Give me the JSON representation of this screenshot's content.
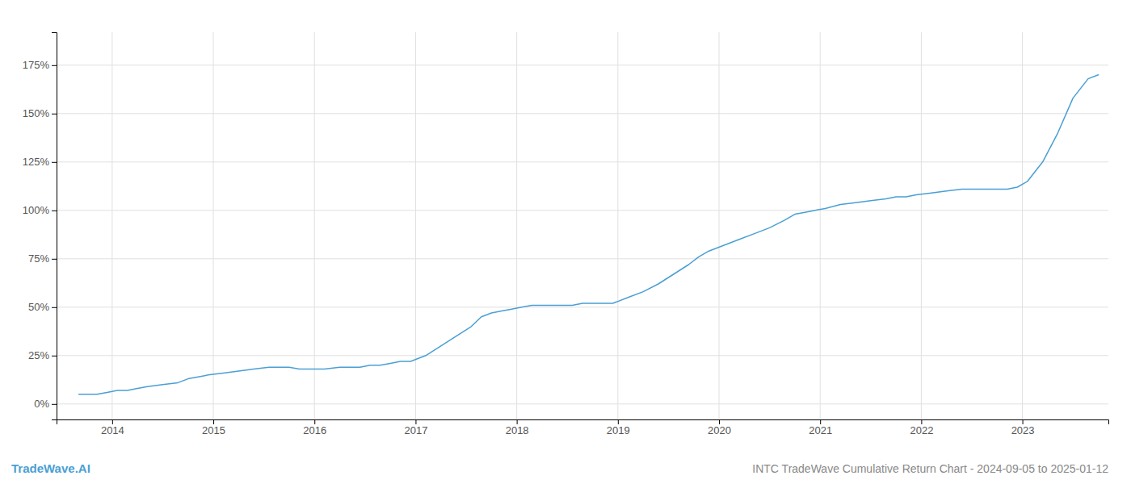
{
  "chart_data": {
    "type": "line",
    "title": "INTC TradeWave Cumulative Return Chart - 2024-09-05 to 2025-01-12",
    "annotations": [
      "TradeWave.AI"
    ],
    "color": "#4a9fd4",
    "grid": true,
    "x": [
      2013.67,
      2013.75,
      2013.85,
      2013.95,
      2014.05,
      2014.15,
      2014.25,
      2014.35,
      2014.5,
      2014.65,
      2014.75,
      2014.85,
      2014.95,
      2015.1,
      2015.25,
      2015.4,
      2015.55,
      2015.65,
      2015.75,
      2015.85,
      2015.95,
      2016.1,
      2016.25,
      2016.35,
      2016.45,
      2016.55,
      2016.65,
      2016.75,
      2016.85,
      2016.95,
      2017.1,
      2017.25,
      2017.4,
      2017.55,
      2017.65,
      2017.75,
      2017.85,
      2017.95,
      2018.05,
      2018.15,
      2018.25,
      2018.35,
      2018.45,
      2018.55,
      2018.65,
      2018.75,
      2018.85,
      2018.95,
      2019.1,
      2019.25,
      2019.4,
      2019.55,
      2019.7,
      2019.8,
      2019.9,
      2020.05,
      2020.2,
      2020.35,
      2020.5,
      2020.65,
      2020.75,
      2020.85,
      2020.95,
      2021.05,
      2021.2,
      2021.35,
      2021.5,
      2021.65,
      2021.75,
      2021.85,
      2021.95,
      2022.1,
      2022.25,
      2022.4,
      2022.55,
      2022.65,
      2022.75,
      2022.85,
      2022.95,
      2023.05,
      2023.2,
      2023.35,
      2023.5,
      2023.65,
      2023.75
    ],
    "values": [
      5,
      5,
      5,
      6,
      7,
      7,
      8,
      9,
      10,
      11,
      13,
      14,
      15,
      16,
      17,
      18,
      19,
      19,
      19,
      18,
      18,
      18,
      19,
      19,
      19,
      20,
      20,
      21,
      22,
      22,
      25,
      30,
      35,
      40,
      45,
      47,
      48,
      49,
      50,
      51,
      51,
      51,
      51,
      51,
      52,
      52,
      52,
      52,
      55,
      58,
      62,
      67,
      72,
      76,
      79,
      82,
      85,
      88,
      91,
      95,
      98,
      99,
      100,
      101,
      103,
      104,
      105,
      106,
      107,
      107,
      108,
      109,
      110,
      111,
      111,
      111,
      111,
      111,
      112,
      115,
      125,
      140,
      158,
      168,
      170
    ],
    "xlim": [
      2013.45,
      2023.85
    ],
    "xticks": [
      2014,
      2015,
      2016,
      2017,
      2018,
      2019,
      2020,
      2021,
      2022,
      2023
    ],
    "ylim": [
      -8,
      192
    ],
    "yticks": [
      {
        "value": 0,
        "label": "0%"
      },
      {
        "value": 25,
        "label": "25%"
      },
      {
        "value": 50,
        "label": "50%"
      },
      {
        "value": 75,
        "label": "75%"
      },
      {
        "value": 100,
        "label": "100%"
      },
      {
        "value": 125,
        "label": "125%"
      },
      {
        "value": 150,
        "label": "150%"
      },
      {
        "value": 175,
        "label": "175%"
      }
    ]
  }
}
